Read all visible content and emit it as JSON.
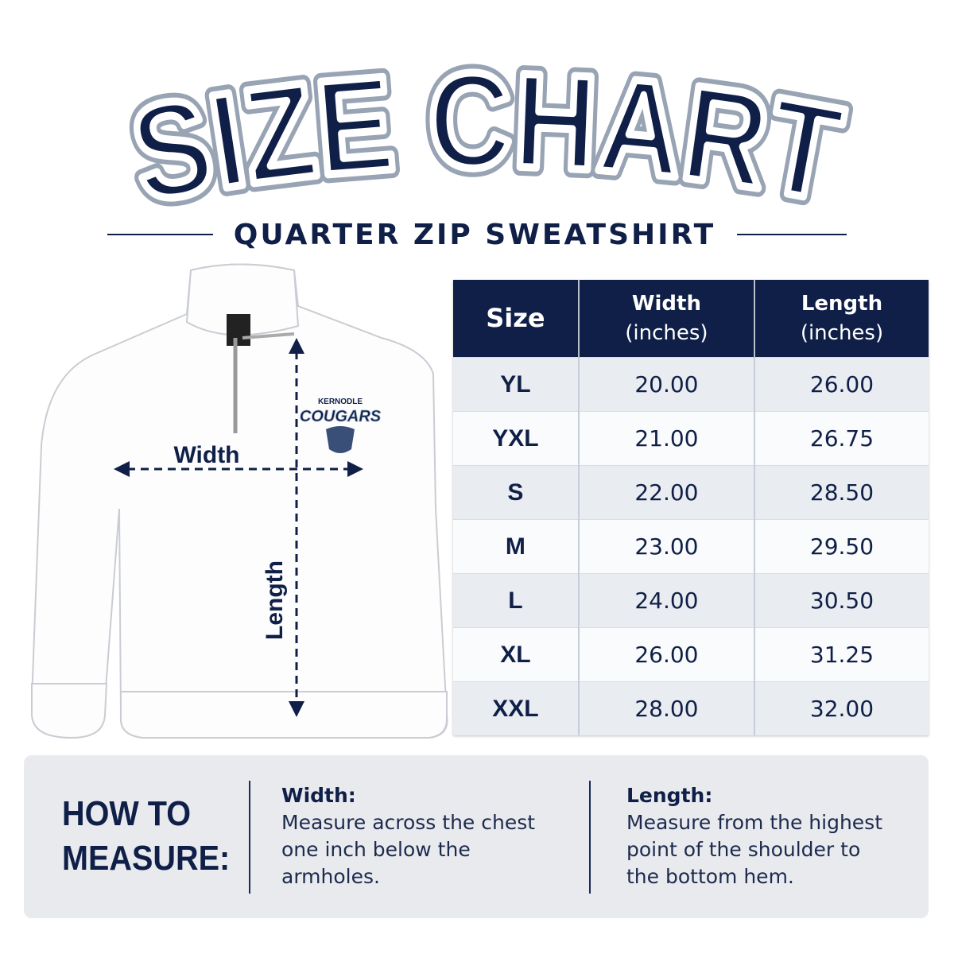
{
  "header": {
    "title": "SIZE CHART",
    "subtitle": "QUARTER ZIP SWEATSHIRT"
  },
  "illustration": {
    "width_label": "Width",
    "length_label": "Length",
    "logo_top": "KERNODLE",
    "logo_main": "COUGARS"
  },
  "table": {
    "columns": [
      {
        "label": "Size"
      },
      {
        "label": "Width",
        "unit": "(inches)"
      },
      {
        "label": "Length",
        "unit": "(inches)"
      }
    ],
    "rows": [
      [
        "YL",
        "20.00",
        "26.00"
      ],
      [
        "YXL",
        "21.00",
        "26.75"
      ],
      [
        "S",
        "22.00",
        "28.50"
      ],
      [
        "M",
        "23.00",
        "29.50"
      ],
      [
        "L",
        "24.00",
        "30.50"
      ],
      [
        "XL",
        "26.00",
        "31.25"
      ],
      [
        "XXL",
        "28.00",
        "32.00"
      ]
    ]
  },
  "how_to": {
    "title_lines": [
      "HOW TO",
      "MEASURE:"
    ],
    "width": {
      "heading": "Width:",
      "text": "Measure across the chest one inch below the armholes."
    },
    "length": {
      "heading": "Length:",
      "text": "Measure from the highest point of the shoulder to the bottom hem."
    }
  }
}
